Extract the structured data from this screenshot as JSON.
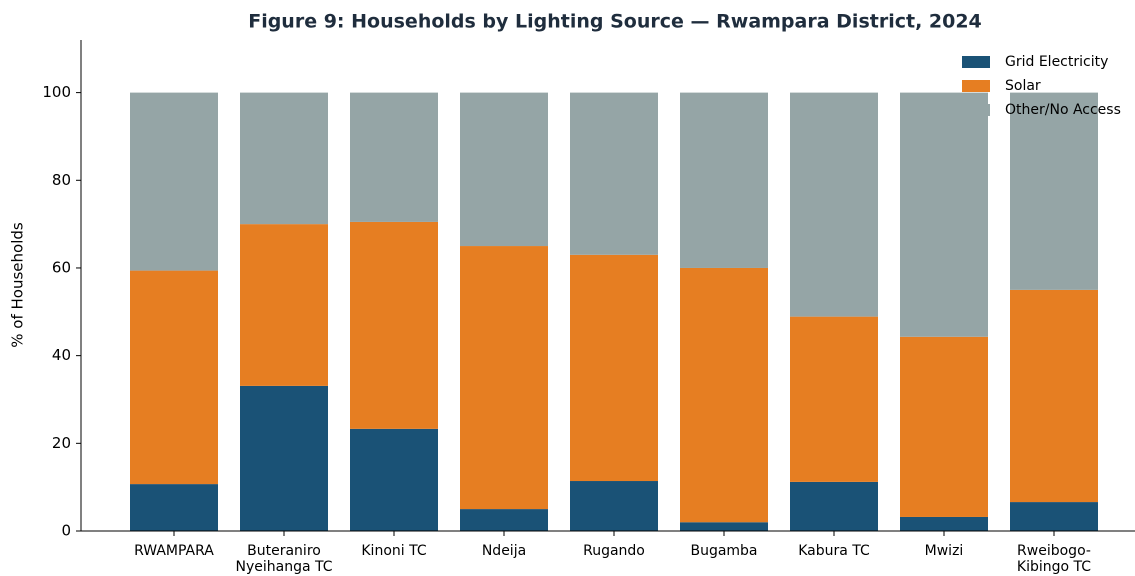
{
  "chart_data": {
    "type": "stacked_bar",
    "title": "Figure 9: Households by Lighting Source — Rwampara District, 2024",
    "y_label": "% of Households",
    "categories": [
      "RWAMPARA",
      "Buteraniro Nyeihanga TC",
      "Kinoni TC",
      "Ndeija",
      "Rugando",
      "Bugamba",
      "Kabura TC",
      "Mwizi",
      "Rweibogo-Kibingo TC"
    ],
    "series": [
      {
        "name": "Grid Electricity",
        "color": "#1a5276",
        "values": [
          10.7,
          33.1,
          23.3,
          5.0,
          11.4,
          2.0,
          11.2,
          3.2,
          6.6
        ]
      },
      {
        "name": "Solar",
        "color": "#e67e22",
        "values": [
          48.7,
          36.9,
          47.2,
          60.0,
          51.6,
          58.0,
          37.7,
          41.1,
          48.4
        ]
      },
      {
        "name": "Other/No Access",
        "color": "#95a5a6",
        "values": [
          40.6,
          30.0,
          29.5,
          35.0,
          37.0,
          40.0,
          51.1,
          55.7,
          45.0
        ]
      }
    ],
    "access_labels": [
      "59%",
      "70%",
      "71%",
      "65%",
      "63%",
      "60%",
      "49%",
      "44%",
      "55%"
    ],
    "ylim": [
      0,
      112
    ],
    "yticks": [
      0,
      20,
      40,
      60,
      80,
      100
    ],
    "legend": "upper right"
  }
}
